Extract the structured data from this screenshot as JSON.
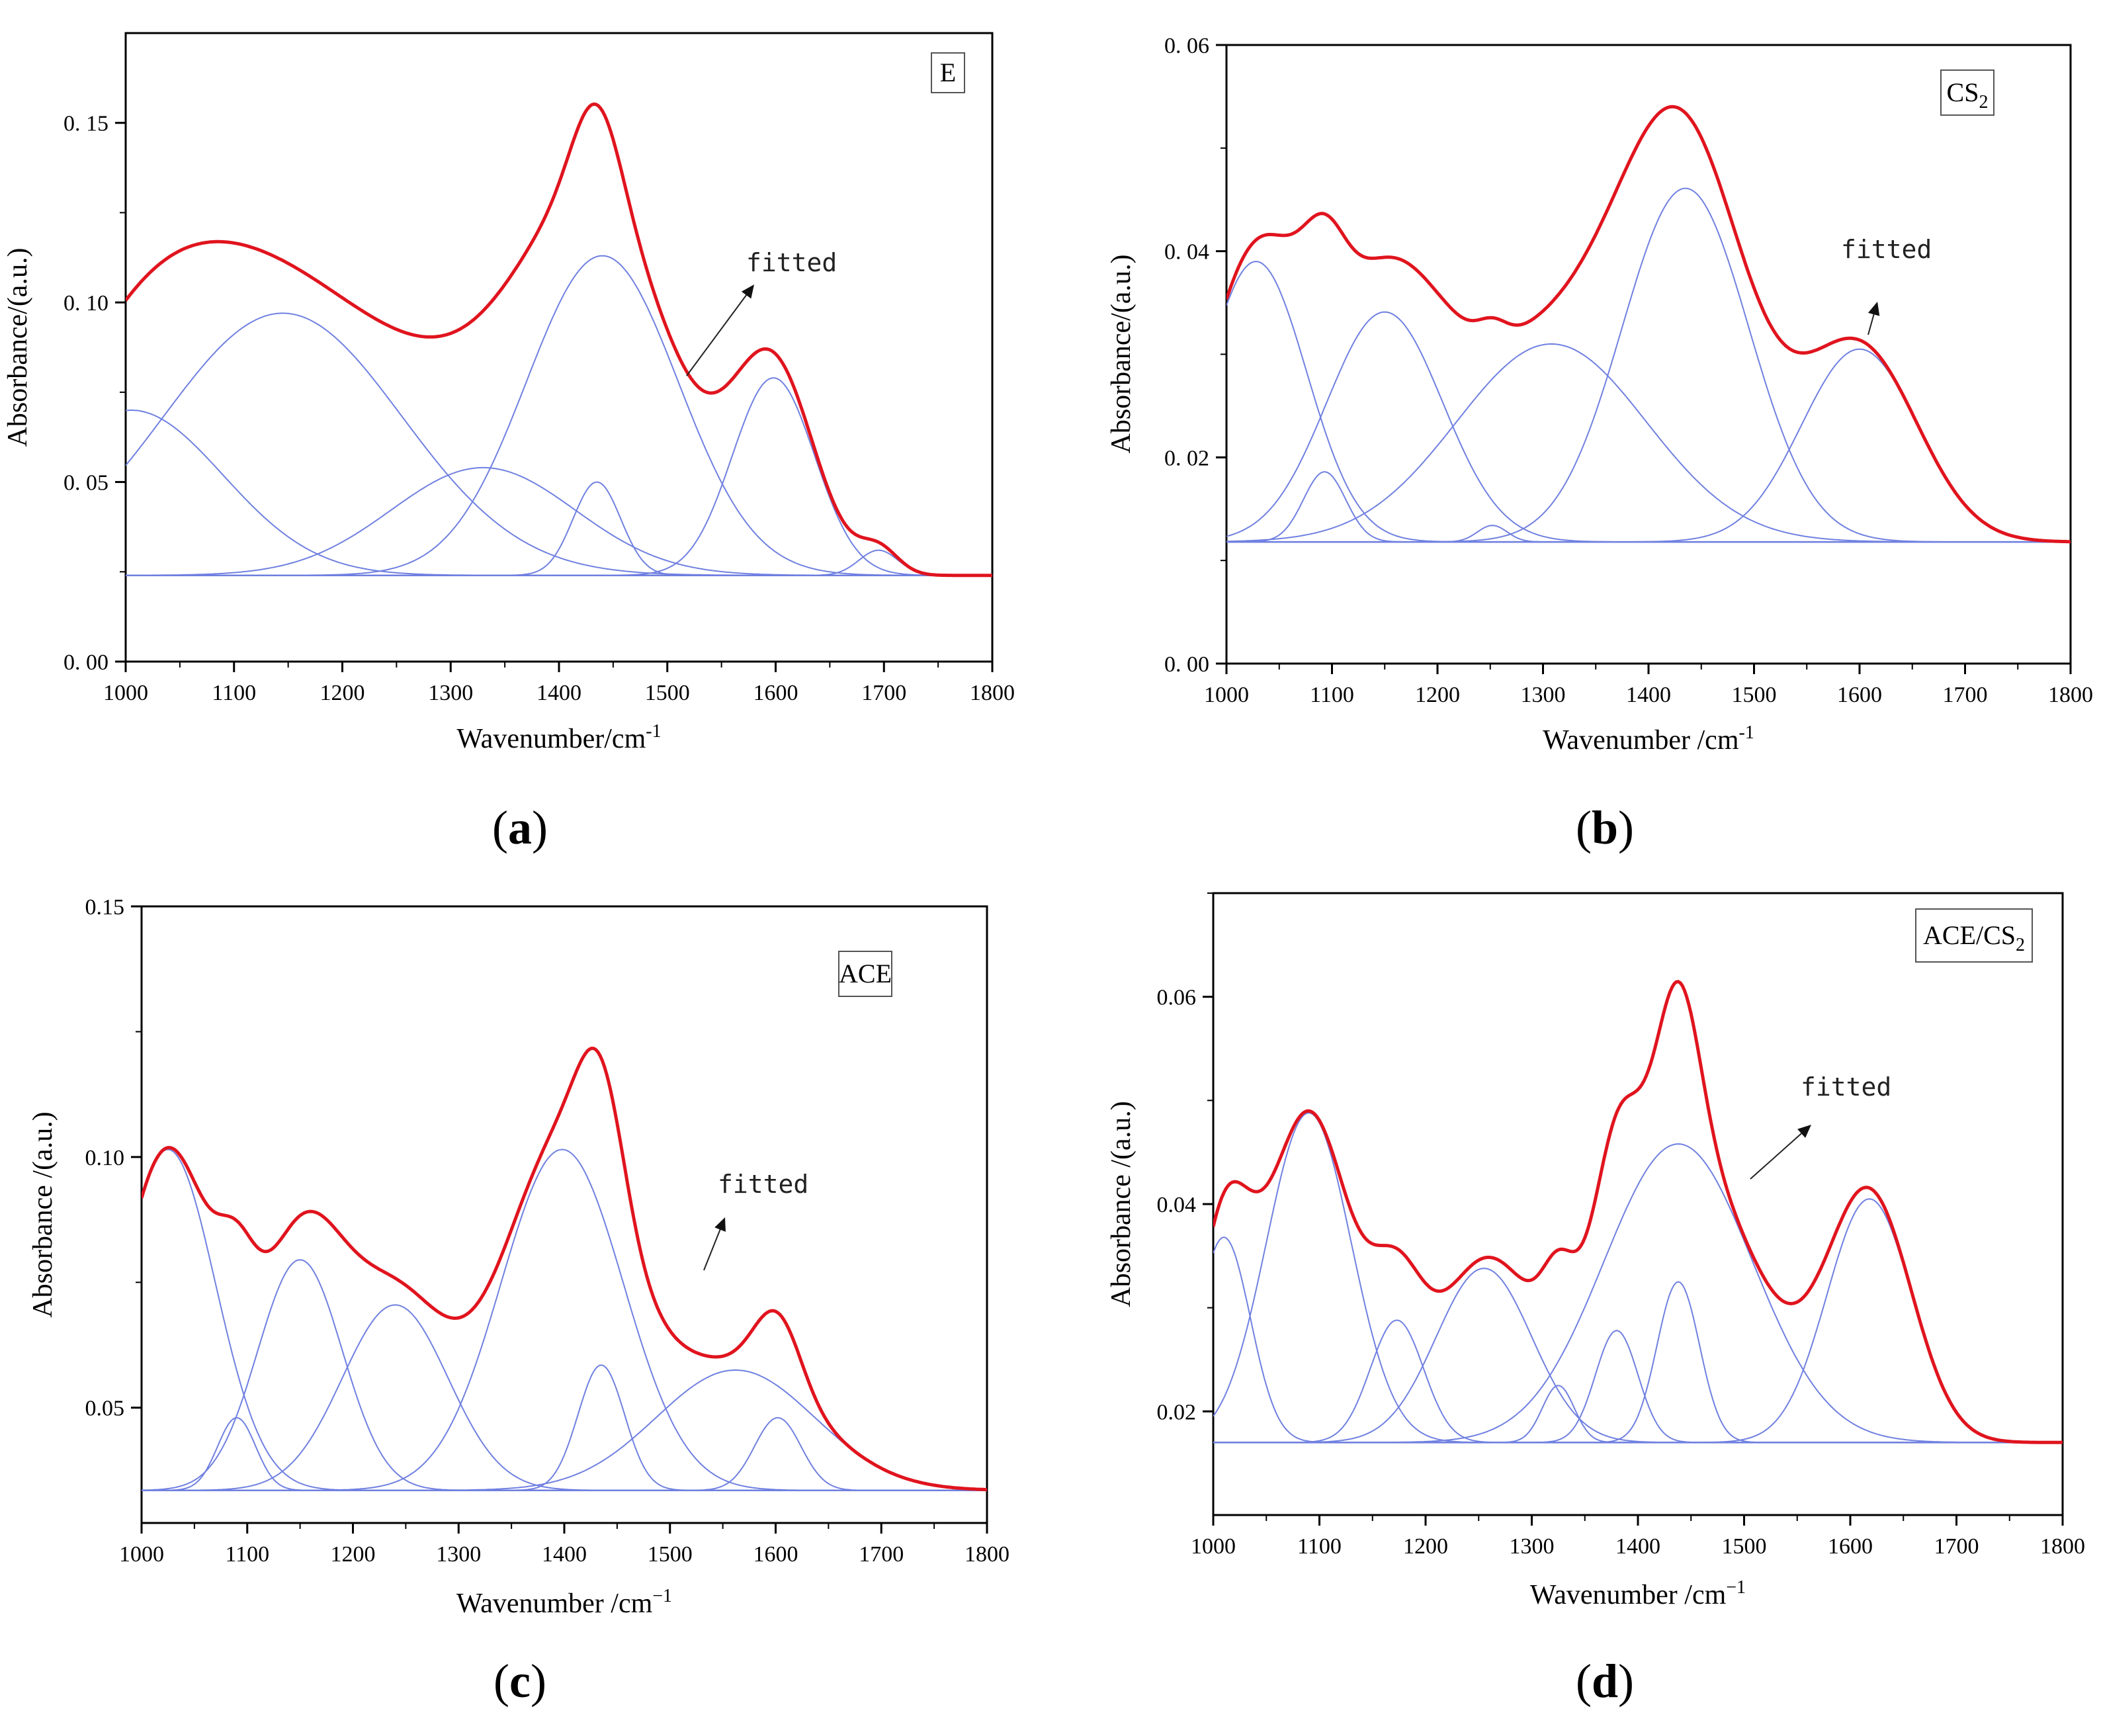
{
  "chart_data": [
    {
      "panel": "(a)",
      "caption_letter": "a",
      "type": "line",
      "legend_main": "E",
      "legend_sub": "",
      "annotation": "fitted",
      "xlabel": "Wavenumber/cm",
      "xlabel_sup": "-1",
      "ylabel": "Absorbance/(a.u.)",
      "xlim": [
        1000,
        1800
      ],
      "ylim": [
        0,
        0.175
      ],
      "xticks": [
        1000,
        1100,
        1200,
        1300,
        1400,
        1500,
        1600,
        1700,
        1800
      ],
      "xtick_labels": [
        "1000",
        "1100",
        "1200",
        "1300",
        "1400",
        "1500",
        "1600",
        "1700",
        "1800"
      ],
      "yticks": [
        0,
        0.05,
        0.1,
        0.15
      ],
      "ytick_labels": [
        "0. 00",
        "0. 05",
        "0. 10",
        "0. 15"
      ],
      "baseline": 0.024,
      "components": [
        {
          "center": 1005,
          "amplitude": 0.046,
          "width": 85
        },
        {
          "center": 1145,
          "amplitude": 0.073,
          "width": 110
        },
        {
          "center": 1330,
          "amplitude": 0.03,
          "width": 85
        },
        {
          "center": 1435,
          "amplitude": 0.026,
          "width": 22
        },
        {
          "center": 1440,
          "amplitude": 0.089,
          "width": 70
        },
        {
          "center": 1598,
          "amplitude": 0.055,
          "width": 38
        },
        {
          "center": 1695,
          "amplitude": 0.007,
          "width": 18
        }
      ],
      "colors": {
        "fitted": "#e0141e",
        "component": "#7080e0",
        "baseline": "#6070d8"
      }
    },
    {
      "panel": "(b)",
      "caption_letter": "b",
      "type": "line",
      "legend_main": "CS",
      "legend_sub": "2",
      "annotation": "fitted",
      "xlabel": "Wavenumber /cm",
      "xlabel_sup": "-1",
      "ylabel": "Absorbance/(a.u.)",
      "xlim": [
        1000,
        1800
      ],
      "ylim": [
        0,
        0.06
      ],
      "xticks": [
        1000,
        1100,
        1200,
        1300,
        1400,
        1500,
        1600,
        1700,
        1800
      ],
      "xtick_labels": [
        "1000",
        "1100",
        "1200",
        "1300",
        "1400",
        "1500",
        "1600",
        "1700",
        "1800"
      ],
      "yticks": [
        0,
        0.02,
        0.04,
        0.06
      ],
      "ytick_labels": [
        "0. 00",
        "0. 02",
        "0. 04",
        "0. 06"
      ],
      "baseline": 0.0118,
      "components": [
        {
          "center": 1028,
          "amplitude": 0.0272,
          "width": 48
        },
        {
          "center": 1093,
          "amplitude": 0.0068,
          "width": 20
        },
        {
          "center": 1150,
          "amplitude": 0.0223,
          "width": 55
        },
        {
          "center": 1252,
          "amplitude": 0.0016,
          "width": 14
        },
        {
          "center": 1308,
          "amplitude": 0.0192,
          "width": 90
        },
        {
          "center": 1435,
          "amplitude": 0.0343,
          "width": 60
        },
        {
          "center": 1600,
          "amplitude": 0.0187,
          "width": 55
        }
      ],
      "colors": {
        "fitted": "#e0141e",
        "component": "#7080e0",
        "baseline": "#6070d8"
      }
    },
    {
      "panel": "(c)",
      "caption_letter": "c",
      "type": "line",
      "legend_main": "ACE",
      "legend_sub": "",
      "annotation": "fitted",
      "xlabel": "Wavenumber /cm",
      "xlabel_sup": "−1",
      "ylabel": "Absorbance /(a.u.)",
      "xlim": [
        1000,
        1800
      ],
      "ylim": [
        0.027,
        0.15
      ],
      "xticks": [
        1000,
        1100,
        1200,
        1300,
        1400,
        1500,
        1600,
        1700,
        1800
      ],
      "xtick_labels": [
        "1000",
        "1100",
        "1200",
        "1300",
        "1400",
        "1500",
        "1600",
        "1700",
        "1800"
      ],
      "yticks": [
        0.05,
        0.1,
        0.15
      ],
      "ytick_labels": [
        "0.05",
        "0.10",
        "0.15"
      ],
      "baseline": 0.0335,
      "components": [
        {
          "center": 1025,
          "amplitude": 0.068,
          "width": 45
        },
        {
          "center": 1090,
          "amplitude": 0.0145,
          "width": 18
        },
        {
          "center": 1150,
          "amplitude": 0.046,
          "width": 40
        },
        {
          "center": 1240,
          "amplitude": 0.037,
          "width": 50
        },
        {
          "center": 1398,
          "amplitude": 0.068,
          "width": 58
        },
        {
          "center": 1435,
          "amplitude": 0.025,
          "width": 22
        },
        {
          "center": 1562,
          "amplitude": 0.024,
          "width": 75
        },
        {
          "center": 1602,
          "amplitude": 0.0145,
          "width": 22
        }
      ],
      "colors": {
        "fitted": "#e0141e",
        "component": "#7080e0",
        "baseline": "#6070d8"
      }
    },
    {
      "panel": "(d)",
      "caption_letter": "d",
      "type": "line",
      "legend_main": "ACE/CS",
      "legend_sub": "2",
      "annotation": "fitted",
      "xlabel": "Wavenumber /cm",
      "xlabel_sup": "−1",
      "ylabel": "Absorbance /(a.u.)",
      "xlim": [
        1000,
        1800
      ],
      "ylim": [
        0.01,
        0.07
      ],
      "xticks": [
        1000,
        1100,
        1200,
        1300,
        1400,
        1500,
        1600,
        1700,
        1800
      ],
      "xtick_labels": [
        "1000",
        "1100",
        "1200",
        "1300",
        "1400",
        "1500",
        "1600",
        "1700",
        "1800"
      ],
      "yticks": [
        0.02,
        0.04,
        0.06
      ],
      "ytick_labels": [
        "0.02",
        "0.04",
        "0.06"
      ],
      "baseline": 0.017,
      "components": [
        {
          "center": 1010,
          "amplitude": 0.0198,
          "width": 25
        },
        {
          "center": 1090,
          "amplitude": 0.0318,
          "width": 40
        },
        {
          "center": 1173,
          "amplitude": 0.0118,
          "width": 25
        },
        {
          "center": 1255,
          "amplitude": 0.0168,
          "width": 45
        },
        {
          "center": 1325,
          "amplitude": 0.0055,
          "width": 15
        },
        {
          "center": 1380,
          "amplitude": 0.0108,
          "width": 20
        },
        {
          "center": 1438,
          "amplitude": 0.0288,
          "width": 70
        },
        {
          "center": 1438,
          "amplitude": 0.0155,
          "width": 20
        },
        {
          "center": 1618,
          "amplitude": 0.0235,
          "width": 40
        }
      ],
      "colors": {
        "fitted": "#e0141e",
        "component": "#7080e0",
        "baseline": "#6070d8"
      }
    }
  ]
}
